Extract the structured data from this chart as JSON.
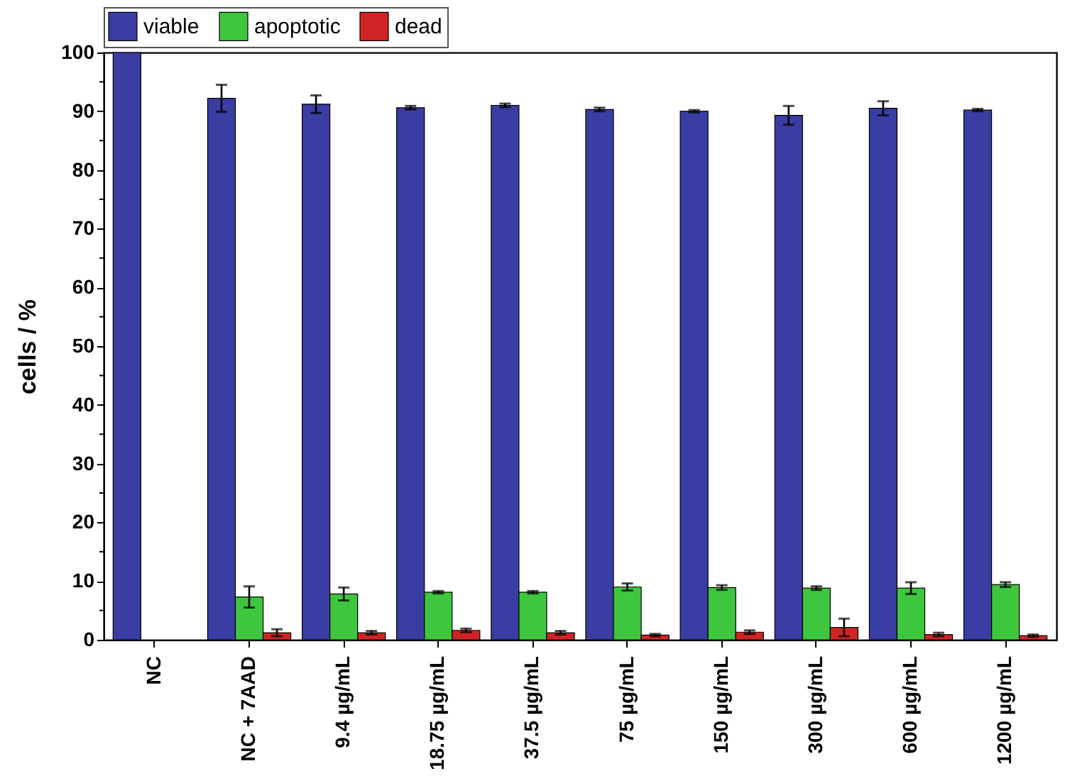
{
  "chart_data": {
    "type": "bar",
    "ylabel": "cells / %",
    "categories": [
      "NC",
      "NC + 7AAD",
      "9.4 µg/mL",
      "18.75 µg/mL",
      "37.5 µg/mL",
      "75 µg/mL",
      "150 µg/mL",
      "300 µg/mL",
      "600 µg/mL",
      "1200 µg/mL"
    ],
    "series": [
      {
        "name": "viable",
        "color": "#3a3da2",
        "values": [
          100,
          92.2,
          91.2,
          90.6,
          91,
          90.3,
          90,
          89.3,
          90.5,
          90.2
        ],
        "errors": [
          null,
          2.3,
          1.5,
          0.3,
          0.3,
          0.3,
          0.2,
          1.6,
          1.2,
          0.2
        ]
      },
      {
        "name": "apoptotic",
        "color": "#3ec63e",
        "values": [
          0,
          7.3,
          7.8,
          8.1,
          8.1,
          9,
          8.9,
          8.8,
          8.8,
          9.4
        ],
        "errors": [
          null,
          1.8,
          1.1,
          0.2,
          0.2,
          0.6,
          0.4,
          0.3,
          1,
          0.4
        ]
      },
      {
        "name": "dead",
        "color": "#d02424",
        "values": [
          0,
          1.2,
          1.2,
          1.6,
          1.2,
          0.8,
          1.3,
          2.1,
          0.9,
          0.7
        ],
        "errors": [
          null,
          0.6,
          0.3,
          0.3,
          0.3,
          0.2,
          0.3,
          1.5,
          0.3,
          0.2
        ]
      }
    ],
    "ylim": [
      0,
      100
    ],
    "yticks": [
      0,
      {
        "value": 5,
        "label": null
      },
      10,
      {
        "value": 15,
        "label": null
      },
      20,
      {
        "value": 25,
        "label": null
      },
      30,
      {
        "value": 35,
        "label": null
      },
      40,
      {
        "value": 45,
        "label": null
      },
      50,
      {
        "value": 55,
        "label": null
      },
      60,
      {
        "value": 65,
        "label": null
      },
      70,
      {
        "value": 75,
        "label": null
      },
      80,
      {
        "value": 85,
        "label": null
      },
      90,
      {
        "value": 95,
        "label": null
      },
      100
    ],
    "grid": false,
    "legend": "top"
  }
}
